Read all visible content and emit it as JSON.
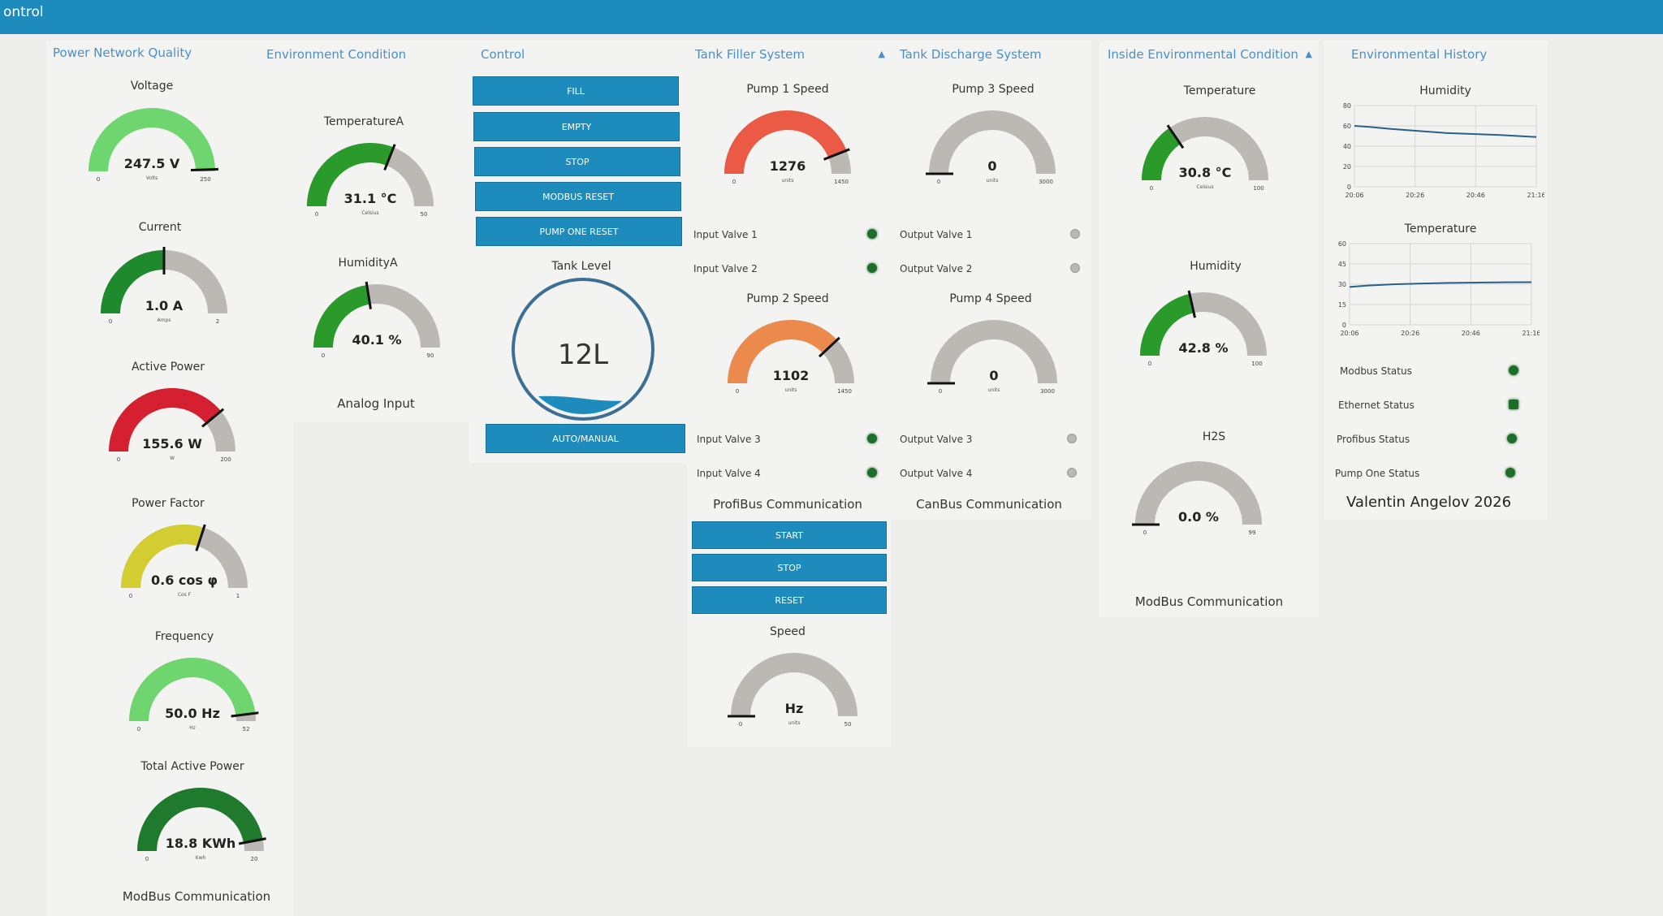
{
  "window": {
    "title": "ontrol"
  },
  "colors": {
    "accent": "#1e8bbd",
    "header_text": "#4b8fc4",
    "gauge_bg": "#bcb8b3",
    "green": "#2a9a2a",
    "light_green": "#6fd66f",
    "dark_green": "#1f7a2d",
    "red": "#d42030",
    "tomato": "#ea5a44",
    "orange": "#ec8a4e",
    "yellow": "#d3cd32",
    "led_on": "#1c6e2a",
    "led_off": "#b8b8b8"
  },
  "groups": {
    "power": {
      "title": "Power Network Quality",
      "footer": "ModBus Communication"
    },
    "env": {
      "title": "Environment Condition",
      "footer": "Analog Input"
    },
    "control": {
      "title": "Control",
      "buttons": [
        "FILL",
        "EMPTY",
        "STOP",
        "MODBUS RESET",
        "PUMP ONE RESET"
      ],
      "tank_label": "Tank Level",
      "tank_value": "12L",
      "tank_fill_fraction": 0.12,
      "auto_manual": "AUTO/MANUAL"
    },
    "filler": {
      "title": "Tank Filler System",
      "caret": "▲",
      "valves_a": [
        "Input Valve 1",
        "Input Valve 2"
      ],
      "valves_b": [
        "Input Valve 3",
        "Input Valve 4"
      ],
      "profibus_label": "ProfiBus Communication",
      "buttons": [
        "START",
        "STOP",
        "RESET"
      ]
    },
    "discharge": {
      "title": "Tank Discharge System",
      "valves_a": [
        "Output Valve 1",
        "Output Valve 2"
      ],
      "valves_b": [
        "Output Valve 3",
        "Output Valve 4"
      ],
      "footer": "CanBus Communication"
    },
    "inside": {
      "title": "Inside Environmental Condition",
      "caret": "▲",
      "footer": "ModBus Communication"
    },
    "history": {
      "title": "Environmental History",
      "statuses": [
        "Modbus Status",
        "Ethernet Status",
        "Profibus Status",
        "Pump One Status"
      ],
      "author": "Valentin Angelov 2026"
    }
  },
  "gauges": {
    "voltage": {
      "label": "Voltage",
      "value": "247.5 V",
      "units": "Volts",
      "min": "0",
      "max": "250",
      "frac": 0.99,
      "color": "#6fd66f"
    },
    "current": {
      "label": "Current",
      "value": "1.0 A",
      "units": "Amps",
      "min": "0",
      "max": "2",
      "frac": 0.5,
      "color": "#1f8a2d"
    },
    "active_power": {
      "label": "Active Power",
      "value": "155.6 W",
      "units": "W",
      "min": "0",
      "max": "200",
      "frac": 0.78,
      "color": "#d42030"
    },
    "power_factor": {
      "label": "Power Factor",
      "value": "0.6 cos φ",
      "units": "Cos F",
      "min": "0",
      "max": "1",
      "frac": 0.6,
      "color": "#d3cd32"
    },
    "frequency": {
      "label": "Frequency",
      "value": "50.0 Hz",
      "units": "Hz",
      "min": "0",
      "max": "52",
      "frac": 0.96,
      "color": "#6fd66f"
    },
    "total_power": {
      "label": "Total Active Power",
      "value": "18.8 KWh",
      "units": "Kwh",
      "min": "0",
      "max": "20",
      "frac": 0.94,
      "color": "#1f7a2d"
    },
    "temp_a": {
      "label": "TemperatureA",
      "value": "31.1 °C",
      "units": "Celsius",
      "min": "0",
      "max": "50",
      "frac": 0.62,
      "color": "#2a9a2a"
    },
    "humid_a": {
      "label": "HumidityA",
      "value": "40.1 %",
      "units": "",
      "min": "0",
      "max": "90",
      "frac": 0.45,
      "color": "#2a9a2a"
    },
    "pump1": {
      "label": "Pump 1 Speed",
      "value": "1276",
      "units": "units",
      "min": "0",
      "max": "1450",
      "frac": 0.88,
      "color": "#ea5a44"
    },
    "pump2": {
      "label": "Pump 2 Speed",
      "value": "1102",
      "units": "units",
      "min": "0",
      "max": "1450",
      "frac": 0.76,
      "color": "#ec8a4e"
    },
    "speed": {
      "label": "Speed",
      "value": "Hz",
      "units": "units",
      "min": "0",
      "max": "50",
      "frac": 0.0,
      "color": "#bcb8b3"
    },
    "pump3": {
      "label": "Pump 3 Speed",
      "value": "0",
      "units": "units",
      "min": "0",
      "max": "3000",
      "frac": 0.0,
      "color": "#bcb8b3"
    },
    "pump4": {
      "label": "Pump 4 Speed",
      "value": "0",
      "units": "units",
      "min": "0",
      "max": "3000",
      "frac": 0.0,
      "color": "#bcb8b3"
    },
    "temperature": {
      "label": "Temperature",
      "value": "30.8 °C",
      "units": "Celsius",
      "min": "0",
      "max": "100",
      "frac": 0.31,
      "color": "#2a9a2a"
    },
    "humidity": {
      "label": "Humidity",
      "value": "42.8 %",
      "units": "",
      "min": "0",
      "max": "100",
      "frac": 0.43,
      "color": "#2a9a2a"
    },
    "h2s": {
      "label": "H2S",
      "value": "0.0 %",
      "units": "",
      "min": "0",
      "max": "99",
      "frac": 0.0,
      "color": "#bcb8b3"
    }
  },
  "chart_data": [
    {
      "type": "line",
      "title": "Humidity",
      "xlabel": "",
      "ylabel": "",
      "x_ticks": [
        "20:06",
        "20:26",
        "20:46",
        "21:16"
      ],
      "y_ticks": [
        "0",
        "20",
        "40",
        "60",
        "80"
      ],
      "ylim": [
        0,
        80
      ],
      "grid": true,
      "series": [
        {
          "x": [
            0,
            0.08,
            0.2,
            0.35,
            0.5,
            0.65,
            0.8,
            0.9,
            1.0
          ],
          "values": [
            60,
            59,
            57,
            55,
            53,
            52,
            51,
            50,
            49
          ]
        }
      ]
    },
    {
      "type": "line",
      "title": "Temperature",
      "xlabel": "",
      "ylabel": "",
      "x_ticks": [
        "20:06",
        "20:26",
        "20:46",
        "21:16"
      ],
      "y_ticks": [
        "0",
        "15",
        "30",
        "45",
        "60"
      ],
      "ylim": [
        0,
        60
      ],
      "grid": true,
      "series": [
        {
          "x": [
            0,
            0.1,
            0.25,
            0.4,
            0.55,
            0.7,
            0.85,
            1.0
          ],
          "values": [
            28,
            29,
            30,
            30.5,
            31,
            31.2,
            31.4,
            31.5
          ]
        }
      ]
    }
  ]
}
